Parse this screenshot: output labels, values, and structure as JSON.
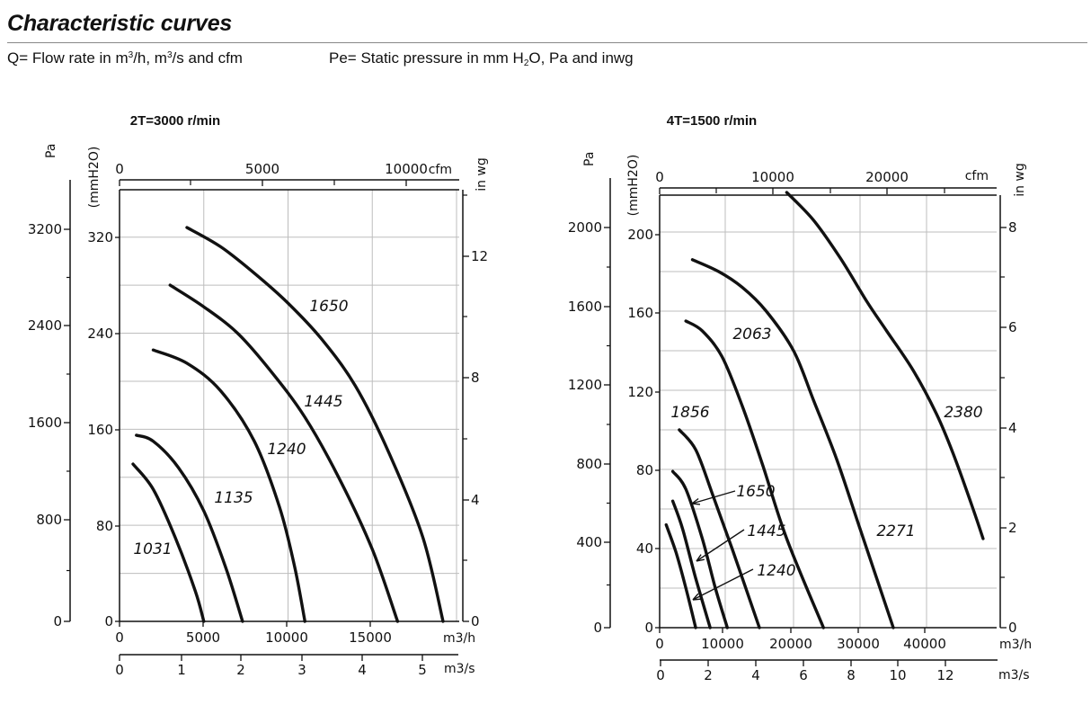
{
  "page": {
    "title": "Characteristic curves",
    "q_note": {
      "pre": "Q= Flow rate in m",
      "sup1": "3",
      "mid": "/h, m",
      "sup2": "3",
      "post": "/s and cfm"
    },
    "pe_note": {
      "pre": "Pe= Static pressure in mm H",
      "sub": "2",
      "post": "O, Pa and inwg"
    }
  },
  "chart_data": [
    {
      "type": "line",
      "title": "2T=3000 r/min",
      "x_unit": "m3/h",
      "y_unit": "mmH2O",
      "xlim": [
        0,
        20000
      ],
      "ylim": [
        0,
        340
      ],
      "grid": true,
      "axes": {
        "pa": {
          "label": "Pa",
          "ticks": [
            0,
            800,
            1600,
            2400,
            3200
          ]
        },
        "mmh2o": {
          "label": "(mmH2O)",
          "ticks": [
            0,
            80,
            160,
            240,
            320
          ]
        },
        "m3h": {
          "label": "m3/h",
          "ticks": [
            0,
            5000,
            10000,
            15000
          ]
        },
        "m3s": {
          "label": "m3/s",
          "ticks": [
            0,
            1,
            2,
            3,
            4,
            5
          ]
        },
        "cfm": {
          "label": "cfm",
          "ticks": [
            0,
            5000,
            10000
          ]
        },
        "inwg": {
          "label": "in wg",
          "ticks": [
            0,
            4,
            8,
            12
          ]
        }
      },
      "series": [
        {
          "name": "1031",
          "points": [
            [
              800,
              131
            ],
            [
              2000,
              110
            ],
            [
              3300,
              70
            ],
            [
              4500,
              25
            ],
            [
              5000,
              0
            ]
          ]
        },
        {
          "name": "1135",
          "points": [
            [
              1000,
              155
            ],
            [
              2000,
              150
            ],
            [
              3500,
              128
            ],
            [
              5000,
              92
            ],
            [
              6300,
              45
            ],
            [
              7300,
              0
            ]
          ]
        },
        {
          "name": "1240",
          "points": [
            [
              2000,
              226
            ],
            [
              4000,
              215
            ],
            [
              6000,
              192
            ],
            [
              8000,
              150
            ],
            [
              9500,
              95
            ],
            [
              10400,
              45
            ],
            [
              11000,
              0
            ]
          ]
        },
        {
          "name": "1445",
          "points": [
            [
              3000,
              280
            ],
            [
              5000,
              262
            ],
            [
              7000,
              240
            ],
            [
              9000,
              208
            ],
            [
              11000,
              170
            ],
            [
              13000,
              120
            ],
            [
              15000,
              60
            ],
            [
              16500,
              0
            ]
          ]
        },
        {
          "name": "1650",
          "points": [
            [
              4000,
              328
            ],
            [
              6000,
              312
            ],
            [
              8000,
              290
            ],
            [
              10000,
              265
            ],
            [
              12000,
              235
            ],
            [
              14000,
              196
            ],
            [
              16000,
              140
            ],
            [
              18000,
              70
            ],
            [
              19200,
              0
            ]
          ]
        }
      ]
    },
    {
      "type": "line",
      "title": "4T=1500 r/min",
      "x_unit": "m3/h",
      "y_unit": "mmH2O",
      "xlim": [
        0,
        50000
      ],
      "ylim": [
        0,
        220
      ],
      "grid": true,
      "axes": {
        "pa": {
          "label": "Pa",
          "ticks": [
            0,
            400,
            800,
            1200,
            1600,
            2000
          ]
        },
        "mmh2o": {
          "label": "(mmH2O)",
          "ticks": [
            0,
            40,
            80,
            120,
            160,
            200
          ]
        },
        "m3h": {
          "label": "m3/h",
          "ticks": [
            0,
            10000,
            20000,
            30000,
            40000
          ]
        },
        "m3s": {
          "label": "m3/s",
          "ticks": [
            0,
            2,
            4,
            6,
            8,
            10,
            12
          ]
        },
        "cfm": {
          "label": "cfm",
          "ticks": [
            0,
            10000,
            20000
          ]
        },
        "inwg": {
          "label": "in wg",
          "ticks": [
            0,
            2,
            4,
            6,
            8
          ]
        }
      },
      "series": [
        {
          "name": "1240",
          "points": [
            [
              1000,
              52
            ],
            [
              2500,
              38
            ],
            [
              4000,
              20
            ],
            [
              5500,
              0
            ]
          ]
        },
        {
          "name": "1445",
          "points": [
            [
              2000,
              64
            ],
            [
              3500,
              50
            ],
            [
              5500,
              25
            ],
            [
              7700,
              0
            ]
          ]
        },
        {
          "name": "1650",
          "points": [
            [
              2000,
              79
            ],
            [
              4000,
              70
            ],
            [
              6500,
              45
            ],
            [
              8500,
              20
            ],
            [
              10300,
              0
            ]
          ]
        },
        {
          "name": "1856",
          "points": [
            [
              3000,
              100
            ],
            [
              5500,
              90
            ],
            [
              8000,
              68
            ],
            [
              11000,
              40
            ],
            [
              15000,
              0
            ]
          ]
        },
        {
          "name": "2063",
          "points": [
            [
              4000,
              155
            ],
            [
              6500,
              150
            ],
            [
              9500,
              137
            ],
            [
              12500,
              112
            ],
            [
              15500,
              82
            ],
            [
              19000,
              45
            ],
            [
              24500,
              0
            ]
          ]
        },
        {
          "name": "2271",
          "points": [
            [
              5000,
              186
            ],
            [
              9000,
              180
            ],
            [
              12500,
              172
            ],
            [
              16000,
              160
            ],
            [
              20000,
              140
            ],
            [
              23000,
              115
            ],
            [
              26500,
              85
            ],
            [
              30000,
              50
            ],
            [
              35000,
              0
            ]
          ]
        },
        {
          "name": "2380",
          "points": [
            [
              19000,
              220
            ],
            [
              23000,
              206
            ],
            [
              27000,
              187
            ],
            [
              31000,
              165
            ],
            [
              34000,
              150
            ],
            [
              38000,
              130
            ],
            [
              41500,
              108
            ],
            [
              44000,
              88
            ],
            [
              47000,
              60
            ],
            [
              48500,
              45
            ]
          ]
        }
      ]
    }
  ]
}
